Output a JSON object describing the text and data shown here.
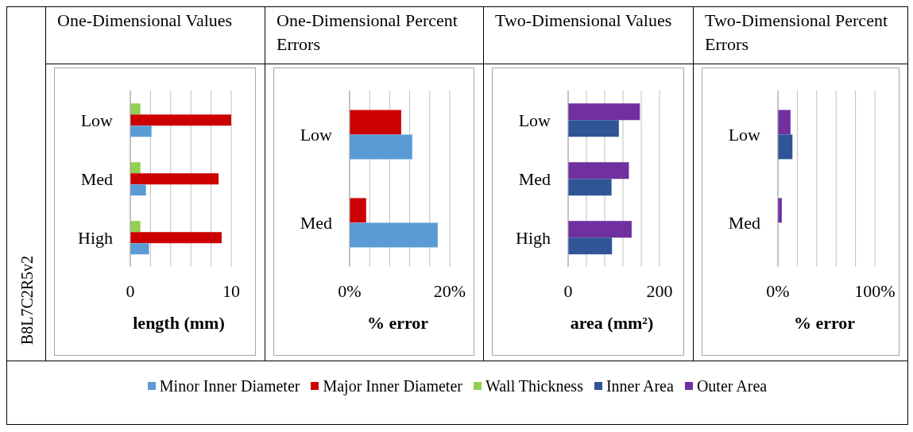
{
  "chart_data": [
    {
      "type": "bar",
      "orientation": "horizontal",
      "title": "One-Dimensional Values",
      "xlabel": "length (mm)",
      "annotations": [
        "B8L7C2R5v2"
      ],
      "categories": [
        "Low",
        "Med",
        "High"
      ],
      "series": [
        {
          "name": "Minor Inner Diameter",
          "color": "#5b9bd5",
          "values": [
            2.1,
            1.55,
            1.85
          ]
        },
        {
          "name": "Major Inner Diameter",
          "color": "#cc0000",
          "values": [
            10.0,
            8.75,
            9.05
          ]
        },
        {
          "name": "Wall Thickness",
          "color": "#92d050",
          "values": [
            1.0,
            1.0,
            1.0
          ]
        }
      ],
      "xlim": [
        0,
        10
      ],
      "xticks": [
        0,
        {
          "value": 2,
          "label": null
        },
        {
          "value": 4,
          "label": null
        },
        {
          "value": 6,
          "label": null
        },
        {
          "value": 8,
          "label": null
        },
        10
      ],
      "grid": "x",
      "legend": "bottom"
    },
    {
      "type": "bar",
      "orientation": "horizontal",
      "title": "One-Dimensional Percent Errors",
      "xlabel": "% error",
      "categories": [
        "Low",
        "Med"
      ],
      "series": [
        {
          "name": "Minor Inner Diameter",
          "color": "#5b9bd5",
          "values": [
            12.5,
            17.6
          ]
        },
        {
          "name": "Major Inner Diameter",
          "color": "#cc0000",
          "values": [
            10.3,
            3.3
          ]
        }
      ],
      "xlim": [
        0,
        20
      ],
      "xticks": [
        {
          "value": 0,
          "label": "0%"
        },
        {
          "value": 4,
          "label": null
        },
        {
          "value": 8,
          "label": null
        },
        {
          "value": 12,
          "label": null
        },
        {
          "value": 16,
          "label": null
        },
        {
          "value": 20,
          "label": "20%"
        }
      ],
      "grid": "x",
      "legend": "bottom"
    },
    {
      "type": "bar",
      "orientation": "horizontal",
      "title": "Two-Dimensional Values",
      "xlabel": "area (mm²)",
      "categories": [
        "Low",
        "Med",
        "High"
      ],
      "series": [
        {
          "name": "Inner Area",
          "color": "#2f5597",
          "values": [
            111,
            95,
            96
          ]
        },
        {
          "name": "Outer Area",
          "color": "#7030a0",
          "values": [
            157,
            133,
            139
          ]
        }
      ],
      "xlim": [
        0,
        200
      ],
      "xticks": [
        0,
        {
          "value": 40,
          "label": null
        },
        {
          "value": 80,
          "label": null
        },
        {
          "value": 120,
          "label": null
        },
        {
          "value": 160,
          "label": null
        },
        200
      ],
      "grid": "x",
      "legend": "bottom"
    },
    {
      "type": "bar",
      "orientation": "horizontal",
      "title": "Two-Dimensional Percent Errors",
      "xlabel": "% error",
      "categories": [
        "Low",
        "Med"
      ],
      "series": [
        {
          "name": "Inner Area",
          "color": "#2f5597",
          "values": [
            15,
            0
          ]
        },
        {
          "name": "Outer Area",
          "color": "#7030a0",
          "values": [
            13,
            4
          ]
        }
      ],
      "xlim": [
        0,
        100
      ],
      "xticks": [
        {
          "value": 0,
          "label": "0%"
        },
        {
          "value": 20,
          "label": null
        },
        {
          "value": 40,
          "label": null
        },
        {
          "value": 60,
          "label": null
        },
        {
          "value": 80,
          "label": null
        },
        {
          "value": 100,
          "label": "100%"
        }
      ],
      "grid": "x",
      "legend": "bottom"
    }
  ]
}
